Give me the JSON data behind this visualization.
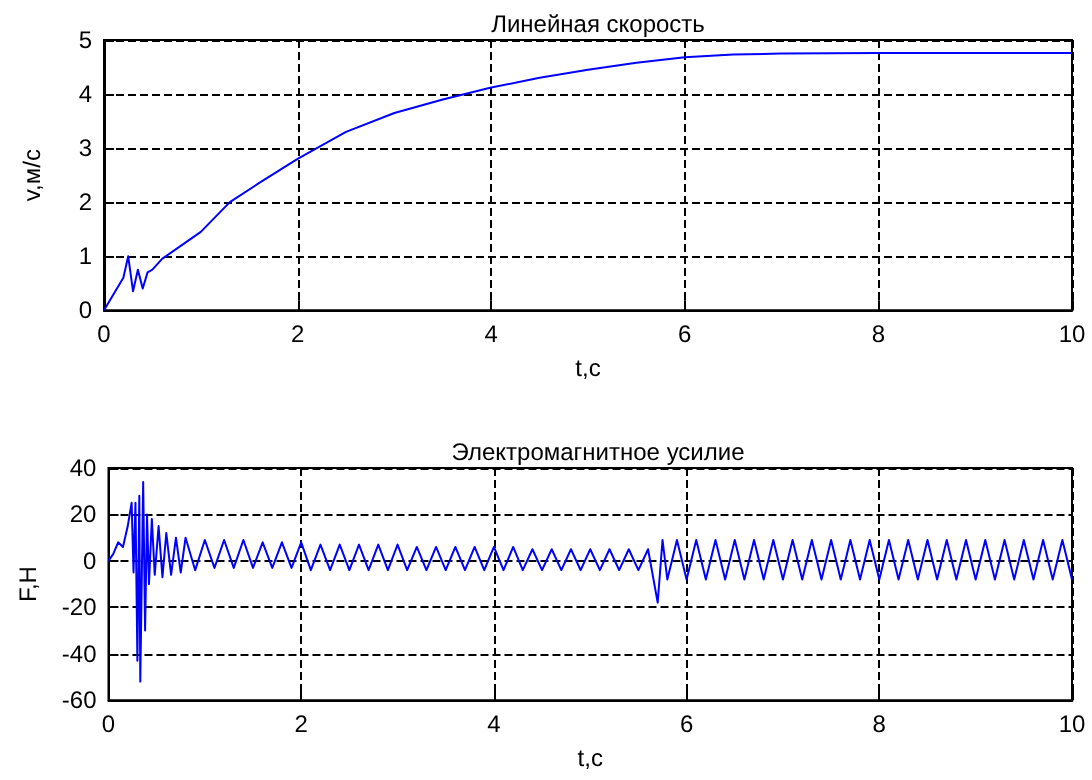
{
  "chart_data": [
    {
      "type": "line",
      "title": "Линейная скорость",
      "xlabel": "t,c",
      "ylabel": "v,м/с",
      "xlim": [
        0,
        10
      ],
      "xticks": [
        0,
        2,
        4,
        6,
        8,
        10
      ],
      "ylim": [
        0,
        5
      ],
      "yticks": [
        0,
        1,
        2,
        3,
        4,
        5
      ],
      "grid": true,
      "marker": "none",
      "line_style": "solid",
      "series": [
        {
          "color": "#0000ff",
          "x": [
            0,
            0.1,
            0.2,
            0.25,
            0.3,
            0.35,
            0.4,
            0.45,
            0.5,
            0.6,
            0.8,
            1,
            1.3,
            1.6,
            2,
            2.5,
            3,
            3.5,
            4,
            4.5,
            5,
            5.5,
            6,
            6.5,
            7,
            8,
            10
          ],
          "values": [
            0,
            0.3,
            0.6,
            1.0,
            0.35,
            0.75,
            0.4,
            0.7,
            0.75,
            0.95,
            1.2,
            1.45,
            2.0,
            2.35,
            2.8,
            3.3,
            3.65,
            3.9,
            4.12,
            4.3,
            4.45,
            4.58,
            4.68,
            4.73,
            4.75,
            4.76,
            4.76
          ]
        }
      ]
    },
    {
      "type": "line",
      "title": "Электромагнитное усилие",
      "xlabel": "t,c",
      "ylabel": "F,H",
      "xlim": [
        0,
        10
      ],
      "xticks": [
        0,
        2,
        4,
        6,
        8,
        10
      ],
      "ylim": [
        -60,
        40
      ],
      "yticks": [
        -60,
        -40,
        -20,
        0,
        20,
        40
      ],
      "grid": true,
      "marker": "none",
      "line_style": "solid",
      "series": [
        {
          "color": "#0000ff",
          "x": [
            0,
            0.05,
            0.1,
            0.15,
            0.2,
            0.24,
            0.26,
            0.28,
            0.3,
            0.32,
            0.33,
            0.36,
            0.38,
            0.4,
            0.42,
            0.45,
            0.48,
            0.52,
            0.56,
            0.6,
            0.65,
            0.7,
            0.75,
            0.8,
            0.9,
            1.0,
            1.1,
            1.2,
            1.3,
            1.4,
            1.5,
            1.6,
            1.7,
            1.8,
            1.9,
            2.0,
            2.1,
            2.2,
            2.3,
            2.4,
            2.5,
            2.6,
            2.7,
            2.8,
            2.9,
            3.0,
            3.1,
            3.2,
            3.3,
            3.4,
            3.5,
            3.6,
            3.7,
            3.8,
            3.9,
            4.0,
            4.1,
            4.2,
            4.3,
            4.4,
            4.5,
            4.6,
            4.7,
            4.8,
            4.9,
            5.0,
            5.1,
            5.2,
            5.3,
            5.4,
            5.5,
            5.6,
            5.7,
            5.75,
            5.8,
            5.9,
            6.0,
            6.1,
            6.2,
            6.3,
            6.4,
            6.5,
            6.6,
            6.7,
            6.8,
            6.9,
            7.0,
            7.1,
            7.2,
            7.3,
            7.4,
            7.5,
            7.6,
            7.7,
            7.8,
            7.9,
            8.0,
            8.1,
            8.2,
            8.3,
            8.4,
            8.5,
            8.6,
            8.7,
            8.8,
            8.9,
            9.0,
            9.1,
            9.2,
            9.3,
            9.4,
            9.5,
            9.6,
            9.7,
            9.8,
            9.9,
            10.0
          ],
          "values": [
            0,
            3,
            8,
            6,
            15,
            25,
            -5,
            25,
            -43,
            28,
            -52,
            34,
            -30,
            20,
            -10,
            18,
            -6,
            15,
            -7,
            12,
            -6,
            10,
            -5,
            10,
            -4,
            9,
            -3,
            9,
            -3,
            9,
            -3,
            8,
            -3,
            8,
            -3,
            8,
            -4,
            7,
            -4,
            7,
            -4,
            7,
            -4,
            7,
            -4,
            7,
            -4,
            6,
            -4,
            6,
            -4,
            6,
            -4,
            6,
            -4,
            6,
            -4,
            6,
            -4,
            5,
            -4,
            5,
            -4,
            5,
            -4,
            5,
            -4,
            5,
            -4,
            5,
            -4,
            5,
            -18,
            9,
            -8,
            9,
            -8,
            9,
            -8,
            9,
            -8,
            9,
            -8,
            9,
            -8,
            9,
            -8,
            9,
            -8,
            9,
            -8,
            9,
            -8,
            9,
            -8,
            9,
            -8,
            9,
            -8,
            9,
            -8,
            9,
            -8,
            9,
            -8,
            9,
            -8,
            9,
            -8,
            9,
            -8,
            9,
            -8,
            9,
            -8,
            9,
            -8
          ]
        }
      ]
    }
  ]
}
